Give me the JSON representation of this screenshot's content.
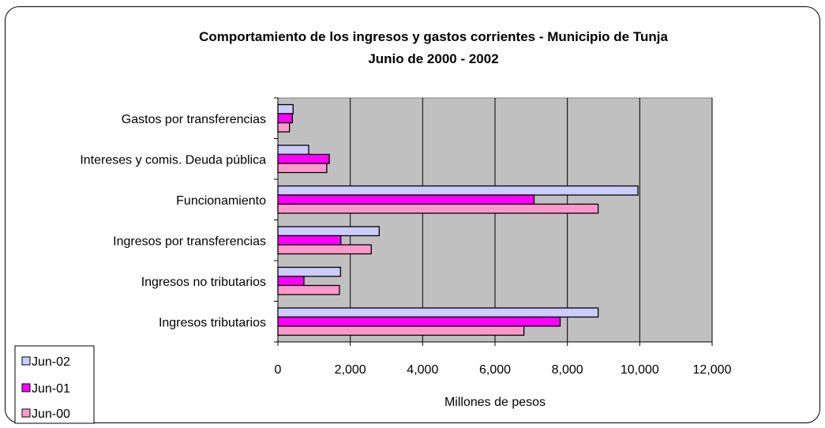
{
  "chart_data": {
    "type": "bar",
    "orientation": "horizontal",
    "title": "Comportamiento de los ingresos y gastos corrientes - Municipio de Tunja",
    "subtitle": "Junio de 2000 - 2002",
    "xlabel": "Millones de pesos",
    "ylabel": "",
    "xlim": [
      0,
      12000
    ],
    "xticks": [
      "0",
      "2,000",
      "4,000",
      "6,000",
      "8,000",
      "10,000",
      "12,000"
    ],
    "grid": true,
    "legend_position": "bottom-left",
    "categories": [
      "Gastos por transferencias",
      "Intereses y comis. Deuda pública",
      "Funcionamiento",
      "Ingresos por transferencias",
      "Ingresos no tributarios",
      "Ingresos tributarios"
    ],
    "series": [
      {
        "name": "Jun-02",
        "color": "#CCCCFF",
        "values": [
          420,
          850,
          9950,
          2800,
          1730,
          8850
        ]
      },
      {
        "name": "Jun-01",
        "color": "#FF00FF",
        "values": [
          400,
          1420,
          7080,
          1740,
          720,
          7800
        ]
      },
      {
        "name": "Jun-00",
        "color": "#FF99CC",
        "values": [
          320,
          1350,
          8850,
          2580,
          1700,
          6800
        ]
      }
    ],
    "plot_background": "#C0C0C0"
  }
}
